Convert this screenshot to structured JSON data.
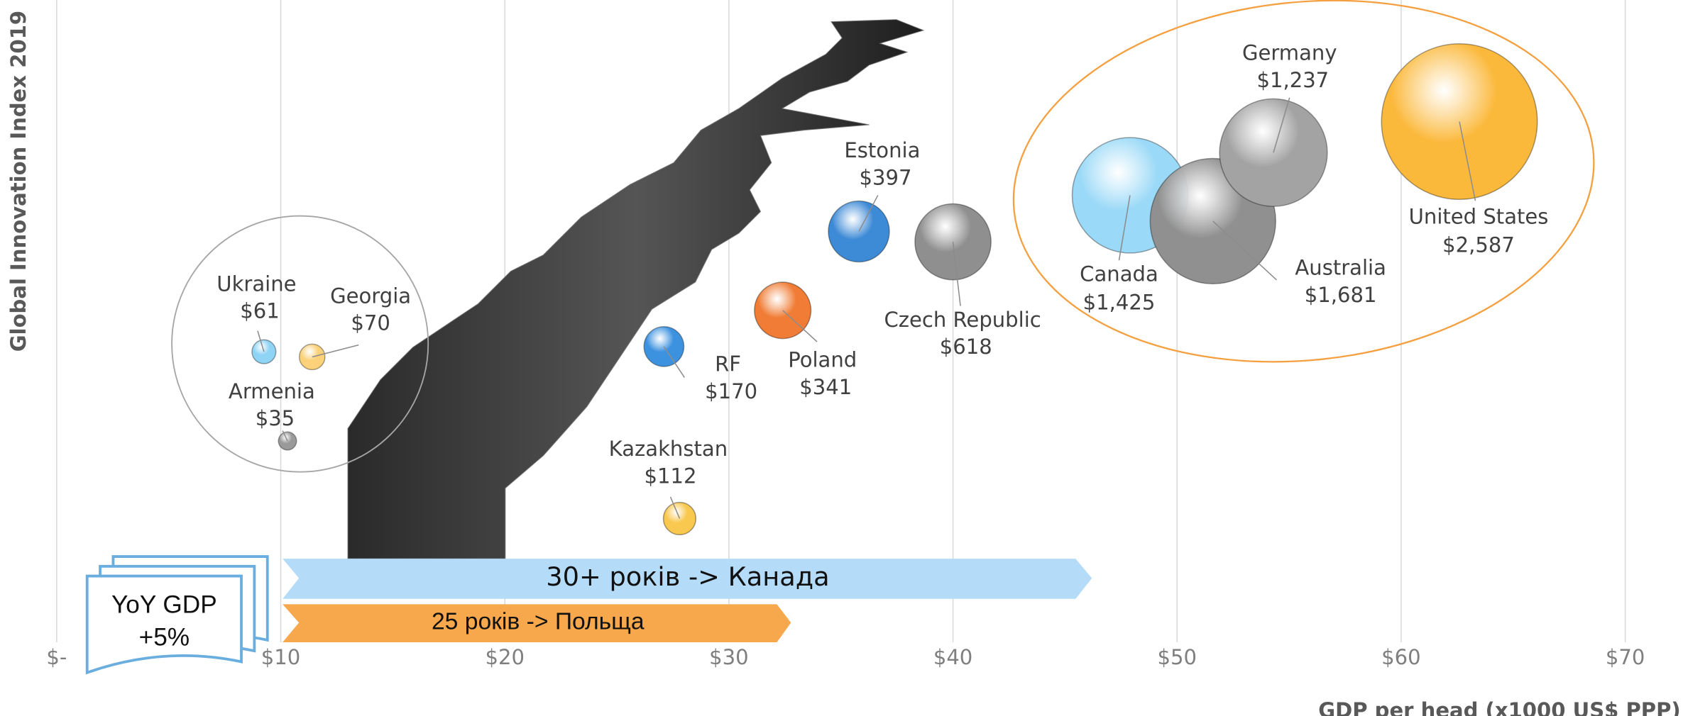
{
  "chart_data": {
    "type": "bubble",
    "y_axis_label": "Global Innovation Index 2019",
    "x_axis_label": "GDP per head (x1000 US$ PPP)",
    "categories": [
      "Ukraine",
      "Georgia",
      "Armenia",
      "Kazakhstan",
      "RF",
      "Poland",
      "Estonia",
      "Czech Republic",
      "Canada",
      "Australia",
      "Germany",
      "United States"
    ],
    "x": [
      9.25,
      11.4,
      10.3,
      27.8,
      27.1,
      32.4,
      35.8,
      40.0,
      47.9,
      51.6,
      54.3,
      62.6
    ],
    "values": [
      43.8,
      43.4,
      36.9,
      30.9,
      44.2,
      47.0,
      53.1,
      52.3,
      55.9,
      53.9,
      59.2,
      61.6
    ],
    "sizes": [
      61,
      70,
      35,
      112,
      170,
      341,
      397,
      618,
      1425,
      1681,
      1237,
      2587
    ],
    "size_labels": [
      "$61",
      "$70",
      "$35",
      "$112",
      "$170",
      "$341",
      "$397",
      "$618",
      "$1,425",
      "$1,681",
      "$1,237",
      "$2,587"
    ],
    "colors": [
      "#8fd3f5",
      "#fbd27a",
      "#9a9a9a",
      "#f9c84f",
      "#3d92e0",
      "#f07c35",
      "#3d8ad6",
      "#8f8f8f",
      "#9ad9f7",
      "#909090",
      "#a3a3a3",
      "#fbb93c"
    ],
    "xlim": [
      0,
      70
    ],
    "ylim": [
      21,
      71
    ],
    "xticks": [
      {
        "value": 0,
        "label": "$-"
      },
      {
        "value": 10,
        "label": "$10"
      },
      {
        "value": 20,
        "label": "$20"
      },
      {
        "value": 30,
        "label": "$30"
      },
      {
        "value": 40,
        "label": "$40"
      },
      {
        "value": 50,
        "label": "$50"
      },
      {
        "value": 60,
        "label": "$60"
      },
      {
        "value": 70,
        "label": "$70"
      }
    ],
    "grid": true,
    "annotations": [
      "30+ років -> Канада",
      "25 років -> Польща"
    ],
    "note": [
      "YoY GDP",
      "+5%"
    ]
  }
}
